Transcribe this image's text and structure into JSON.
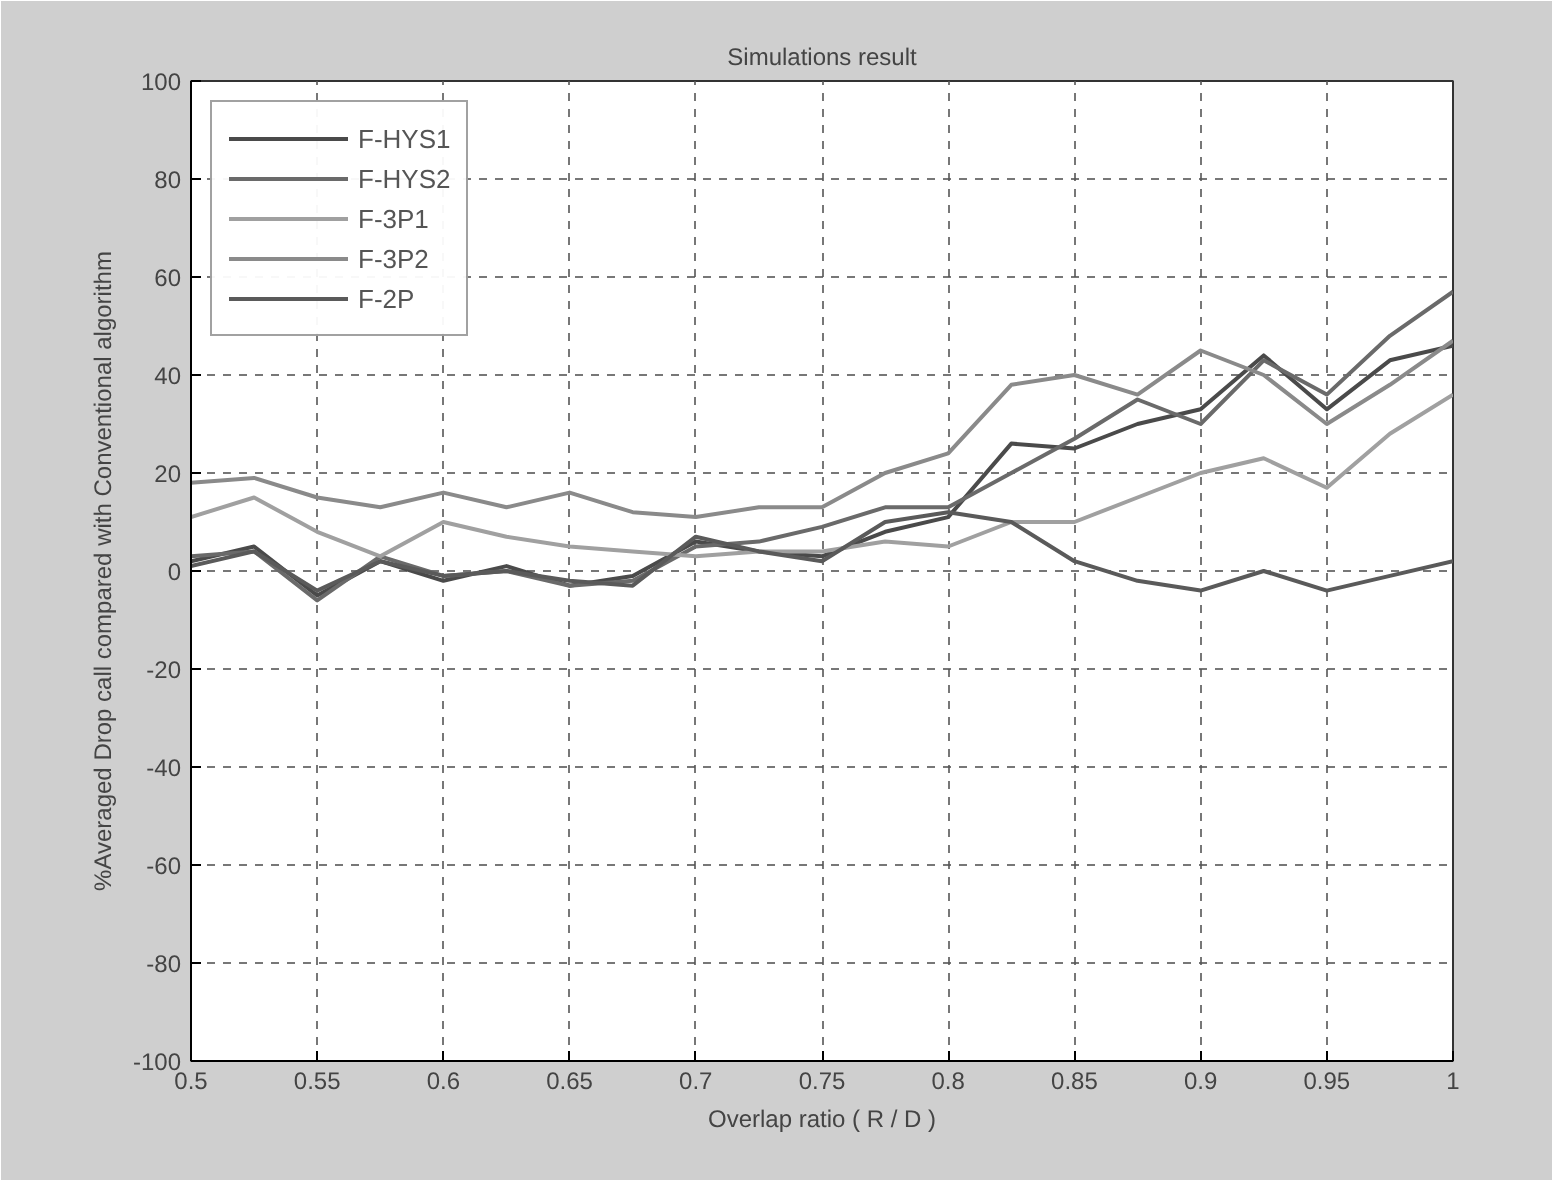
{
  "chart_data": {
    "type": "line",
    "title": "Simulations result",
    "xlabel": "Overlap ratio ( R / D )",
    "ylabel": "%Averaged Drop call compared with Conventional algorithm",
    "x": [
      0.5,
      0.525,
      0.55,
      0.575,
      0.6,
      0.625,
      0.65,
      0.675,
      0.7,
      0.725,
      0.75,
      0.775,
      0.8,
      0.825,
      0.85,
      0.875,
      0.9,
      0.925,
      0.95,
      0.975,
      1.0
    ],
    "series": [
      {
        "name": "F-HYS1",
        "color": "#4a4a4a",
        "values": [
          2,
          5,
          -5,
          2,
          -2,
          1,
          -3,
          -1,
          6,
          4,
          3,
          8,
          11,
          26,
          25,
          30,
          33,
          44,
          33,
          43,
          46
        ]
      },
      {
        "name": "F-HYS2",
        "color": "#6a6a6a",
        "values": [
          3,
          4,
          -6,
          3,
          -1,
          0,
          -3,
          -2,
          5,
          6,
          9,
          13,
          13,
          20,
          27,
          35,
          30,
          43,
          36,
          48,
          57
        ]
      },
      {
        "name": "F-3P1",
        "color": "#a0a0a0",
        "values": [
          11,
          15,
          8,
          3,
          10,
          7,
          5,
          4,
          3,
          4,
          4,
          6,
          5,
          10,
          10,
          15,
          20,
          23,
          17,
          28,
          36
        ]
      },
      {
        "name": "F-3P2",
        "color": "#8a8a8a",
        "values": [
          18,
          19,
          15,
          13,
          16,
          13,
          16,
          12,
          11,
          13,
          13,
          20,
          24,
          38,
          40,
          36,
          45,
          40,
          30,
          38,
          47
        ]
      },
      {
        "name": "F-2P",
        "color": "#5a5a5a",
        "values": [
          1,
          4,
          -4,
          2,
          -1,
          0,
          -2,
          -3,
          7,
          4,
          2,
          10,
          12,
          10,
          2,
          -2,
          -4,
          0,
          -4,
          -1,
          2
        ]
      }
    ],
    "xlim": [
      0.5,
      1
    ],
    "ylim": [
      -100,
      100
    ],
    "xticks": [
      0.5,
      0.55,
      0.6,
      0.65,
      0.7,
      0.75,
      0.8,
      0.85,
      0.9,
      0.95,
      1
    ],
    "yticks": [
      -100,
      -80,
      -60,
      -40,
      -20,
      0,
      20,
      40,
      60,
      80,
      100
    ],
    "grid": true,
    "legend": "top left",
    "line_style": "solid",
    "marker": "none"
  }
}
